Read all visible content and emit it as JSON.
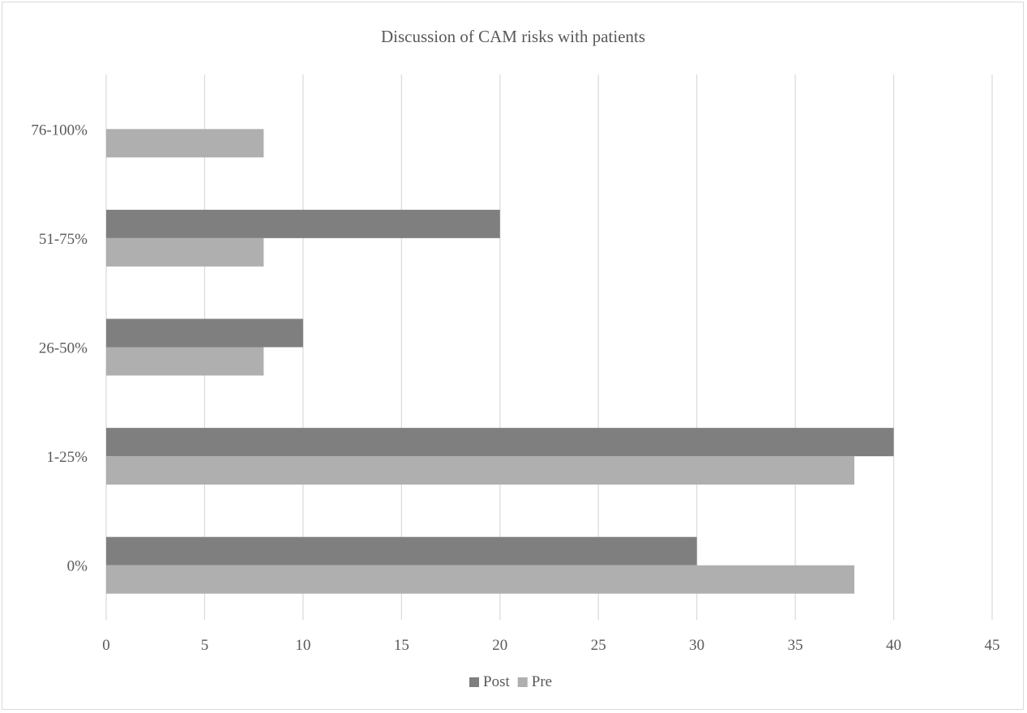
{
  "chart_data": {
    "type": "bar",
    "orientation": "horizontal",
    "title": "Discussion of CAM risks with patients",
    "xlabel": "",
    "ylabel": "",
    "categories": [
      "0%",
      "1-25%",
      "26-50%",
      "51-75%",
      "76-100%"
    ],
    "series": [
      {
        "name": "Post",
        "color": "#7f7f7f",
        "values": [
          30,
          40,
          10,
          20,
          0
        ]
      },
      {
        "name": "Pre",
        "color": "#afafaf",
        "values": [
          38,
          38,
          8,
          8,
          8
        ]
      }
    ],
    "xlim": [
      0,
      45
    ],
    "x_ticks": [
      0,
      5,
      10,
      15,
      20,
      25,
      30,
      35,
      40,
      45
    ],
    "grid": "vertical",
    "legend_position": "bottom"
  }
}
